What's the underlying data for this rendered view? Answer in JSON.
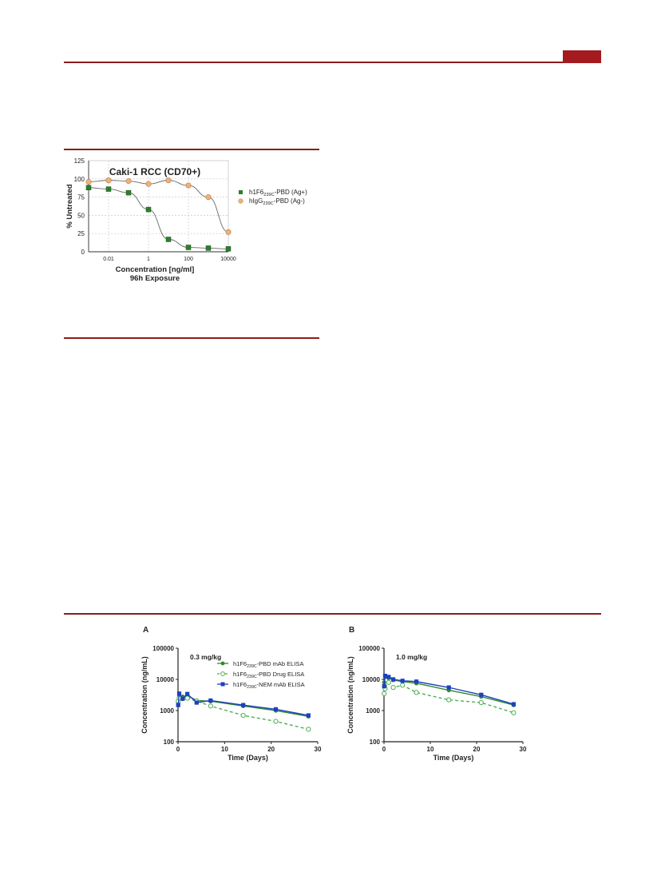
{
  "page": {
    "accent_color": "#8b1c1c",
    "tab_color": "#a31a1f"
  },
  "figure1": {
    "chart_data": {
      "type": "scatter",
      "title": "Caki-1 RCC (CD70+)",
      "xlabel": "Concentration [ng/ml]",
      "xlabel2": "96h Exposure",
      "ylabel": "% Untreated",
      "x_scale": "log",
      "xlim": [
        0.001,
        10000
      ],
      "ylim": [
        0,
        125
      ],
      "x_ticks": [
        0.01,
        1,
        100,
        10000
      ],
      "x_tick_labels": [
        "0.01",
        "1",
        "100",
        "10000"
      ],
      "y_ticks": [
        0,
        25,
        50,
        75,
        100,
        125
      ],
      "y_tick_labels": [
        "0",
        "25",
        "50",
        "75",
        "100",
        "125"
      ],
      "grid": true,
      "legend_placement": "right",
      "series": [
        {
          "name": "h1F6239C-PBD (Ag+)",
          "name_main": "h1F6",
          "name_sub": "239C",
          "name_rest": "-PBD (Ag+)",
          "marker": "square",
          "color": "#2e7d2e",
          "x": [
            0.001,
            0.01,
            0.1,
            1,
            10,
            100,
            1000,
            10000
          ],
          "y": [
            88,
            86,
            81,
            58,
            17,
            6,
            5,
            4
          ]
        },
        {
          "name": "hIgG239C-PBD (Ag-)",
          "name_main": "hIgG",
          "name_sub": "239C",
          "name_rest": "-PBD (Ag-)",
          "marker": "circle",
          "color": "#f0b27a",
          "x": [
            0.001,
            0.01,
            0.1,
            1,
            10,
            100,
            1000,
            10000
          ],
          "y": [
            96,
            98,
            97,
            93,
            98,
            91,
            75,
            27
          ]
        }
      ]
    }
  },
  "figure2": {
    "panels": [
      {
        "panel_label": "A",
        "chart_data": {
          "type": "line",
          "annotation": "0.3 mg/kg",
          "xlabel": "Time (Days)",
          "ylabel": "Concentration (ng/mL)",
          "y_scale": "log",
          "xlim": [
            0,
            30
          ],
          "ylim": [
            100,
            100000
          ],
          "x_ticks": [
            0,
            10,
            20,
            30
          ],
          "x_tick_labels": [
            "0",
            "10",
            "20",
            "30"
          ],
          "y_ticks": [
            100,
            1000,
            10000,
            100000
          ],
          "y_tick_labels": [
            "100",
            "1000",
            "10000",
            "100000"
          ],
          "legend_placement": "top-right",
          "series": [
            {
              "name": "h1F6239C-PBD mAb ELISA",
              "name_main": "h1F6",
              "name_sub": "239C",
              "name_rest": "-PBD mAb ELISA",
              "style": "solid-filled-circle",
              "color": "#2e8b2e",
              "x": [
                0.04,
                0.25,
                1,
                2,
                4,
                7,
                14,
                21,
                28
              ],
              "y": [
                1700,
                3000,
                2800,
                3000,
                2100,
                2000,
                1400,
                1000,
                650
              ]
            },
            {
              "name": "h1F6239C-PBD Drug ELISA",
              "name_main": "h1F6",
              "name_sub": "239C",
              "name_rest": "-PBD Drug ELISA",
              "style": "dashed-open-circle",
              "color": "#4caf50",
              "x": [
                0.04,
                0.25,
                1,
                2,
                4,
                7,
                14,
                21,
                28
              ],
              "y": [
                2000,
                2500,
                2400,
                2500,
                2000,
                1400,
                700,
                450,
                250
              ]
            },
            {
              "name": "h1F6239C-NEM mAb ELISA",
              "name_main": "h1F6",
              "name_sub": "239C",
              "name_rest": "-NEM mAb ELISA",
              "style": "solid-filled-square",
              "color": "#1f3fbf",
              "x": [
                0.04,
                0.25,
                1,
                2,
                4,
                7,
                14,
                21,
                28
              ],
              "y": [
                1500,
                3500,
                2400,
                3400,
                1800,
                2100,
                1500,
                1100,
                700
              ]
            }
          ]
        }
      },
      {
        "panel_label": "B",
        "chart_data": {
          "type": "line",
          "annotation": "1.0 mg/kg",
          "xlabel": "Time (Days)",
          "ylabel": "Concentration (ng/mL)",
          "y_scale": "log",
          "xlim": [
            0,
            30
          ],
          "ylim": [
            100,
            100000
          ],
          "x_ticks": [
            0,
            10,
            20,
            30
          ],
          "x_tick_labels": [
            "0",
            "10",
            "20",
            "30"
          ],
          "y_ticks": [
            100,
            1000,
            10000,
            100000
          ],
          "y_tick_labels": [
            "100",
            "1000",
            "10000",
            "100000"
          ],
          "series": [
            {
              "name": "h1F6239C-PBD mAb ELISA",
              "color": "#2e8b2e",
              "style": "solid-filled-circle",
              "x": [
                0.04,
                0.25,
                1,
                2,
                4,
                7,
                14,
                21,
                28
              ],
              "y": [
                8000,
                12000,
                11000,
                9500,
                8500,
                7500,
                4500,
                2800,
                1500
              ]
            },
            {
              "name": "h1F6239C-PBD Drug ELISA",
              "color": "#4caf50",
              "style": "dashed-open-circle",
              "x": [
                0.04,
                0.25,
                1,
                2,
                4,
                7,
                14,
                21,
                28
              ],
              "y": [
                3500,
                5000,
                8000,
                5500,
                6500,
                3800,
                2200,
                1800,
                850
              ]
            },
            {
              "name": "h1F6239C-NEM mAb ELISA",
              "color": "#1f3fbf",
              "style": "solid-filled-square",
              "x": [
                0.04,
                0.25,
                1,
                2,
                4,
                7,
                14,
                21,
                28
              ],
              "y": [
                6000,
                13000,
                12000,
                10000,
                9000,
                8500,
                5500,
                3200,
                1600
              ]
            }
          ]
        }
      }
    ]
  }
}
